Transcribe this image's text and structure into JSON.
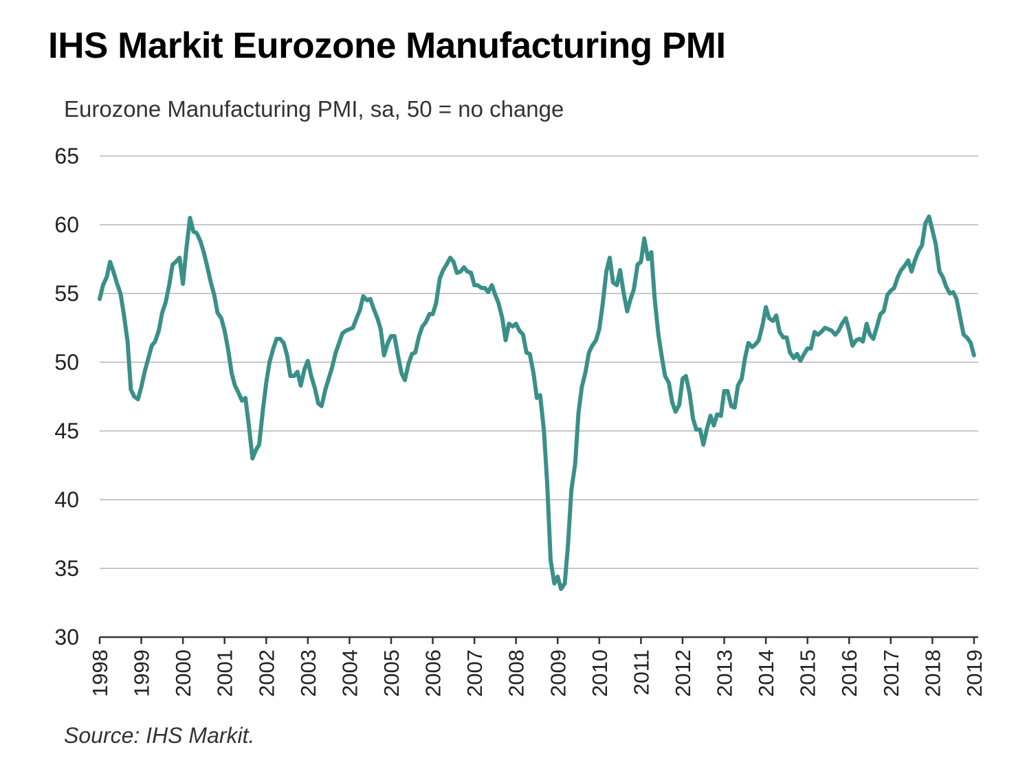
{
  "header": {
    "title": "IHS Markit Eurozone Manufacturing PMI",
    "subtitle": "Eurozone Manufacturing PMI, sa, 50 = no change",
    "source": "Source: IHS Markit."
  },
  "chart_data": {
    "type": "line",
    "title": "IHS Markit Eurozone Manufacturing PMI",
    "subtitle": "Eurozone Manufacturing PMI, sa, 50 = no change",
    "xlabel": "",
    "ylabel": "",
    "ylim": [
      30,
      65
    ],
    "yticks": [
      "30",
      "35",
      "40",
      "45",
      "50",
      "55",
      "60",
      "65"
    ],
    "xlim": [
      1998,
      2019.1
    ],
    "xticks": [
      "1998",
      "1999",
      "2000",
      "2001",
      "2002",
      "2003",
      "2004",
      "2005",
      "2006",
      "2007",
      "2008",
      "2009",
      "2010",
      "2011",
      "2012",
      "2013",
      "2014",
      "2015",
      "2016",
      "2017",
      "2018",
      "2019"
    ],
    "grid": true,
    "legend": "none",
    "colors": {
      "series": "#3a9088",
      "grid": "#c8c8c8",
      "axis": "#333333"
    },
    "series": [
      {
        "points": [
          [
            1998.0,
            54.6
          ],
          [
            1998.08,
            55.6
          ],
          [
            1998.17,
            56.2
          ],
          [
            1998.25,
            57.3
          ],
          [
            1998.33,
            56.6
          ],
          [
            1998.42,
            55.7
          ],
          [
            1998.5,
            55.0
          ],
          [
            1998.58,
            53.5
          ],
          [
            1998.67,
            51.5
          ],
          [
            1998.75,
            48.0
          ],
          [
            1998.83,
            47.5
          ],
          [
            1998.92,
            47.3
          ],
          [
            1999.0,
            48.2
          ],
          [
            1999.08,
            49.3
          ],
          [
            1999.17,
            50.3
          ],
          [
            1999.25,
            51.2
          ],
          [
            1999.33,
            51.5
          ],
          [
            1999.42,
            52.3
          ],
          [
            1999.5,
            53.6
          ],
          [
            1999.58,
            54.3
          ],
          [
            1999.67,
            55.6
          ],
          [
            1999.75,
            57.1
          ],
          [
            1999.83,
            57.3
          ],
          [
            1999.92,
            57.6
          ],
          [
            2000.0,
            55.7
          ],
          [
            2000.08,
            58.2
          ],
          [
            2000.17,
            60.5
          ],
          [
            2000.25,
            59.5
          ],
          [
            2000.33,
            59.4
          ],
          [
            2000.42,
            58.8
          ],
          [
            2000.5,
            58.0
          ],
          [
            2000.58,
            57.0
          ],
          [
            2000.67,
            55.8
          ],
          [
            2000.75,
            54.9
          ],
          [
            2000.83,
            53.6
          ],
          [
            2000.92,
            53.2
          ],
          [
            2001.0,
            52.3
          ],
          [
            2001.08,
            51.0
          ],
          [
            2001.17,
            49.2
          ],
          [
            2001.25,
            48.3
          ],
          [
            2001.33,
            47.8
          ],
          [
            2001.42,
            47.2
          ],
          [
            2001.5,
            47.4
          ],
          [
            2001.58,
            45.5
          ],
          [
            2001.67,
            43.0
          ],
          [
            2001.75,
            43.6
          ],
          [
            2001.83,
            44.0
          ],
          [
            2001.92,
            46.5
          ],
          [
            2002.0,
            48.5
          ],
          [
            2002.08,
            50.0
          ],
          [
            2002.17,
            51.0
          ],
          [
            2002.25,
            51.7
          ],
          [
            2002.33,
            51.7
          ],
          [
            2002.42,
            51.4
          ],
          [
            2002.5,
            50.5
          ],
          [
            2002.58,
            49.0
          ],
          [
            2002.67,
            49.0
          ],
          [
            2002.75,
            49.3
          ],
          [
            2002.83,
            48.3
          ],
          [
            2002.92,
            49.5
          ],
          [
            2003.0,
            50.1
          ],
          [
            2003.08,
            49.0
          ],
          [
            2003.17,
            48.1
          ],
          [
            2003.25,
            47.0
          ],
          [
            2003.33,
            46.8
          ],
          [
            2003.42,
            48.0
          ],
          [
            2003.5,
            48.8
          ],
          [
            2003.58,
            49.6
          ],
          [
            2003.67,
            50.7
          ],
          [
            2003.75,
            51.4
          ],
          [
            2003.83,
            52.1
          ],
          [
            2003.92,
            52.3
          ],
          [
            2004.0,
            52.4
          ],
          [
            2004.08,
            52.5
          ],
          [
            2004.17,
            53.2
          ],
          [
            2004.25,
            53.8
          ],
          [
            2004.33,
            54.8
          ],
          [
            2004.42,
            54.5
          ],
          [
            2004.5,
            54.6
          ],
          [
            2004.58,
            53.9
          ],
          [
            2004.67,
            53.2
          ],
          [
            2004.75,
            52.4
          ],
          [
            2004.83,
            50.5
          ],
          [
            2004.92,
            51.4
          ],
          [
            2005.0,
            51.9
          ],
          [
            2005.08,
            51.9
          ],
          [
            2005.17,
            50.4
          ],
          [
            2005.25,
            49.2
          ],
          [
            2005.33,
            48.7
          ],
          [
            2005.42,
            49.9
          ],
          [
            2005.5,
            50.6
          ],
          [
            2005.58,
            50.7
          ],
          [
            2005.67,
            51.9
          ],
          [
            2005.75,
            52.6
          ],
          [
            2005.83,
            52.9
          ],
          [
            2005.92,
            53.5
          ],
          [
            2006.0,
            53.5
          ],
          [
            2006.08,
            54.3
          ],
          [
            2006.17,
            56.1
          ],
          [
            2006.25,
            56.7
          ],
          [
            2006.33,
            57.1
          ],
          [
            2006.42,
            57.6
          ],
          [
            2006.5,
            57.3
          ],
          [
            2006.58,
            56.5
          ],
          [
            2006.67,
            56.6
          ],
          [
            2006.75,
            56.9
          ],
          [
            2006.83,
            56.6
          ],
          [
            2006.92,
            56.5
          ],
          [
            2007.0,
            55.6
          ],
          [
            2007.08,
            55.6
          ],
          [
            2007.17,
            55.4
          ],
          [
            2007.25,
            55.4
          ],
          [
            2007.33,
            55.1
          ],
          [
            2007.42,
            55.6
          ],
          [
            2007.5,
            54.9
          ],
          [
            2007.58,
            54.3
          ],
          [
            2007.67,
            53.2
          ],
          [
            2007.75,
            51.6
          ],
          [
            2007.83,
            52.8
          ],
          [
            2007.92,
            52.6
          ],
          [
            2008.0,
            52.8
          ],
          [
            2008.08,
            52.3
          ],
          [
            2008.17,
            52.0
          ],
          [
            2008.25,
            50.7
          ],
          [
            2008.33,
            50.6
          ],
          [
            2008.42,
            49.2
          ],
          [
            2008.5,
            47.4
          ],
          [
            2008.58,
            47.6
          ],
          [
            2008.67,
            45.0
          ],
          [
            2008.75,
            41.1
          ],
          [
            2008.83,
            35.6
          ],
          [
            2008.92,
            33.9
          ],
          [
            2009.0,
            34.4
          ],
          [
            2009.08,
            33.5
          ],
          [
            2009.17,
            33.9
          ],
          [
            2009.25,
            36.8
          ],
          [
            2009.33,
            40.7
          ],
          [
            2009.42,
            42.6
          ],
          [
            2009.5,
            46.3
          ],
          [
            2009.58,
            48.2
          ],
          [
            2009.67,
            49.3
          ],
          [
            2009.75,
            50.7
          ],
          [
            2009.83,
            51.2
          ],
          [
            2009.92,
            51.6
          ],
          [
            2010.0,
            52.4
          ],
          [
            2010.08,
            54.2
          ],
          [
            2010.17,
            56.6
          ],
          [
            2010.25,
            57.6
          ],
          [
            2010.33,
            55.8
          ],
          [
            2010.42,
            55.6
          ],
          [
            2010.5,
            56.7
          ],
          [
            2010.58,
            55.1
          ],
          [
            2010.67,
            53.7
          ],
          [
            2010.75,
            54.6
          ],
          [
            2010.83,
            55.3
          ],
          [
            2010.92,
            57.1
          ],
          [
            2011.0,
            57.3
          ],
          [
            2011.08,
            59.0
          ],
          [
            2011.17,
            57.5
          ],
          [
            2011.25,
            58.0
          ],
          [
            2011.33,
            54.6
          ],
          [
            2011.42,
            52.0
          ],
          [
            2011.5,
            50.4
          ],
          [
            2011.58,
            49.0
          ],
          [
            2011.67,
            48.5
          ],
          [
            2011.75,
            47.1
          ],
          [
            2011.83,
            46.4
          ],
          [
            2011.92,
            46.9
          ],
          [
            2012.0,
            48.8
          ],
          [
            2012.08,
            49.0
          ],
          [
            2012.17,
            47.7
          ],
          [
            2012.25,
            45.9
          ],
          [
            2012.33,
            45.1
          ],
          [
            2012.42,
            45.1
          ],
          [
            2012.5,
            44.0
          ],
          [
            2012.58,
            45.1
          ],
          [
            2012.67,
            46.1
          ],
          [
            2012.75,
            45.4
          ],
          [
            2012.83,
            46.2
          ],
          [
            2012.92,
            46.1
          ],
          [
            2013.0,
            47.9
          ],
          [
            2013.08,
            47.9
          ],
          [
            2013.17,
            46.8
          ],
          [
            2013.25,
            46.7
          ],
          [
            2013.33,
            48.3
          ],
          [
            2013.42,
            48.8
          ],
          [
            2013.5,
            50.3
          ],
          [
            2013.58,
            51.4
          ],
          [
            2013.67,
            51.1
          ],
          [
            2013.75,
            51.3
          ],
          [
            2013.83,
            51.6
          ],
          [
            2013.92,
            52.7
          ],
          [
            2014.0,
            54.0
          ],
          [
            2014.08,
            53.2
          ],
          [
            2014.17,
            53.0
          ],
          [
            2014.25,
            53.4
          ],
          [
            2014.33,
            52.2
          ],
          [
            2014.42,
            51.8
          ],
          [
            2014.5,
            51.8
          ],
          [
            2014.58,
            50.7
          ],
          [
            2014.67,
            50.3
          ],
          [
            2014.75,
            50.6
          ],
          [
            2014.83,
            50.1
          ],
          [
            2014.92,
            50.6
          ],
          [
            2015.0,
            51.0
          ],
          [
            2015.08,
            51.0
          ],
          [
            2015.17,
            52.2
          ],
          [
            2015.25,
            52.0
          ],
          [
            2015.33,
            52.2
          ],
          [
            2015.42,
            52.5
          ],
          [
            2015.5,
            52.4
          ],
          [
            2015.58,
            52.3
          ],
          [
            2015.67,
            52.0
          ],
          [
            2015.75,
            52.3
          ],
          [
            2015.83,
            52.8
          ],
          [
            2015.92,
            53.2
          ],
          [
            2016.0,
            52.3
          ],
          [
            2016.08,
            51.2
          ],
          [
            2016.17,
            51.6
          ],
          [
            2016.25,
            51.7
          ],
          [
            2016.33,
            51.5
          ],
          [
            2016.42,
            52.8
          ],
          [
            2016.5,
            52.0
          ],
          [
            2016.58,
            51.7
          ],
          [
            2016.67,
            52.6
          ],
          [
            2016.75,
            53.5
          ],
          [
            2016.83,
            53.7
          ],
          [
            2016.92,
            54.9
          ],
          [
            2017.0,
            55.2
          ],
          [
            2017.08,
            55.4
          ],
          [
            2017.17,
            56.2
          ],
          [
            2017.25,
            56.7
          ],
          [
            2017.33,
            57.0
          ],
          [
            2017.42,
            57.4
          ],
          [
            2017.5,
            56.6
          ],
          [
            2017.58,
            57.4
          ],
          [
            2017.67,
            58.1
          ],
          [
            2017.75,
            58.5
          ],
          [
            2017.83,
            60.1
          ],
          [
            2017.92,
            60.6
          ],
          [
            2018.0,
            59.6
          ],
          [
            2018.08,
            58.6
          ],
          [
            2018.17,
            56.6
          ],
          [
            2018.25,
            56.2
          ],
          [
            2018.33,
            55.5
          ],
          [
            2018.42,
            55.0
          ],
          [
            2018.5,
            55.1
          ],
          [
            2018.58,
            54.6
          ],
          [
            2018.67,
            53.2
          ],
          [
            2018.75,
            52.0
          ],
          [
            2018.83,
            51.8
          ],
          [
            2018.92,
            51.4
          ],
          [
            2019.0,
            50.5
          ]
        ]
      }
    ]
  }
}
